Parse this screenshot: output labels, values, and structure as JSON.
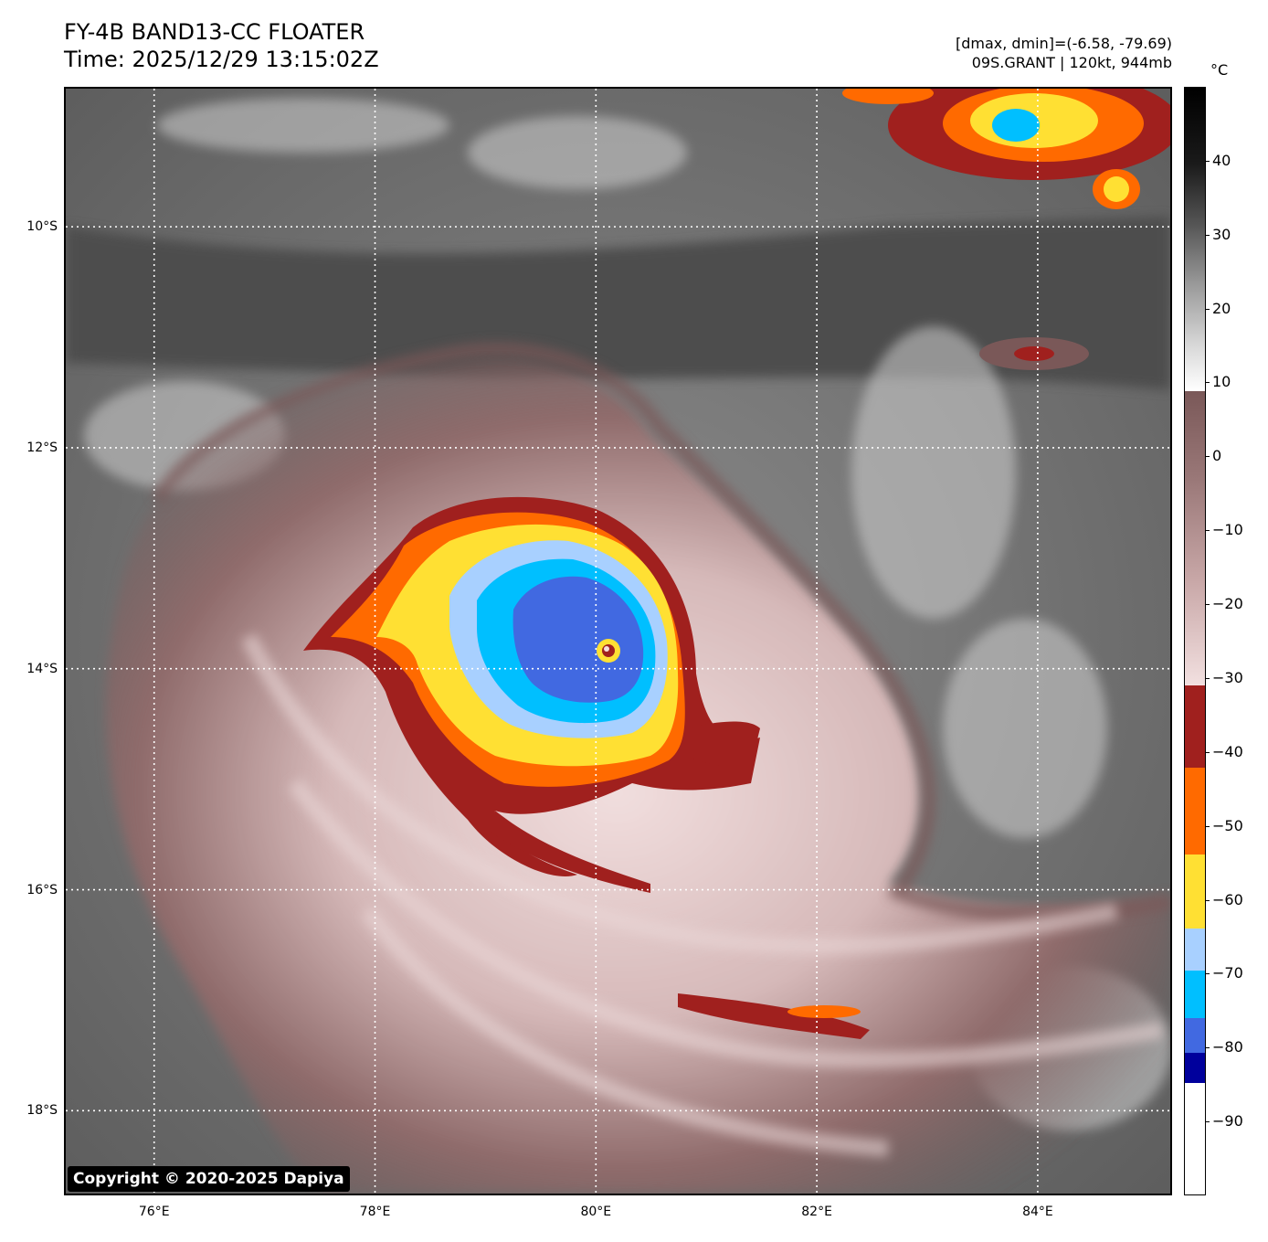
{
  "header": {
    "title_line1": "FY-4B BAND13-CC FLOATER",
    "title_line2": "Time: 2025/12/29 13:15:02Z",
    "dmax_dmin": "[dmax, dmin]=(-6.58, -79.69)",
    "storm_info": "09S.GRANT | 120kt, 944mb"
  },
  "map": {
    "copyright": "Copyright © 2020-2025 Dapiya",
    "lat_labels": [
      "10°S",
      "12°S",
      "14°S",
      "16°S",
      "18°S"
    ],
    "lon_labels": [
      "76°E",
      "78°E",
      "80°E",
      "82°E",
      "84°E"
    ],
    "grid_lats": [
      -10,
      -12,
      -14,
      -16,
      -18
    ],
    "grid_lons": [
      76,
      78,
      80,
      82,
      84
    ],
    "lat_range": [
      -18.75,
      -8.75
    ],
    "lon_range": [
      75.2,
      85.2
    ],
    "eye_center": {
      "lon": 80.1,
      "lat": -13.8
    }
  },
  "colorbar": {
    "unit": "°C",
    "range": [
      -100,
      50
    ],
    "tick_labels": [
      "40",
      "30",
      "20",
      "10",
      "0",
      "−10",
      "−20",
      "−30",
      "−40",
      "−50",
      "−60",
      "−70",
      "−80",
      "−90"
    ],
    "tick_values": [
      40,
      30,
      20,
      10,
      0,
      -10,
      -20,
      -30,
      -40,
      -50,
      -60,
      -70,
      -80,
      -90
    ],
    "colors": {
      "dark_red": "#a0201e",
      "orange": "#ff6a00",
      "yellow": "#ffe033",
      "light_blue": "#a8d0ff",
      "cyan": "#00bfff",
      "royal_blue": "#4169e1",
      "navy": "#00009c",
      "pink_pale": "#f5dede",
      "mauve": "#7a5858"
    }
  }
}
